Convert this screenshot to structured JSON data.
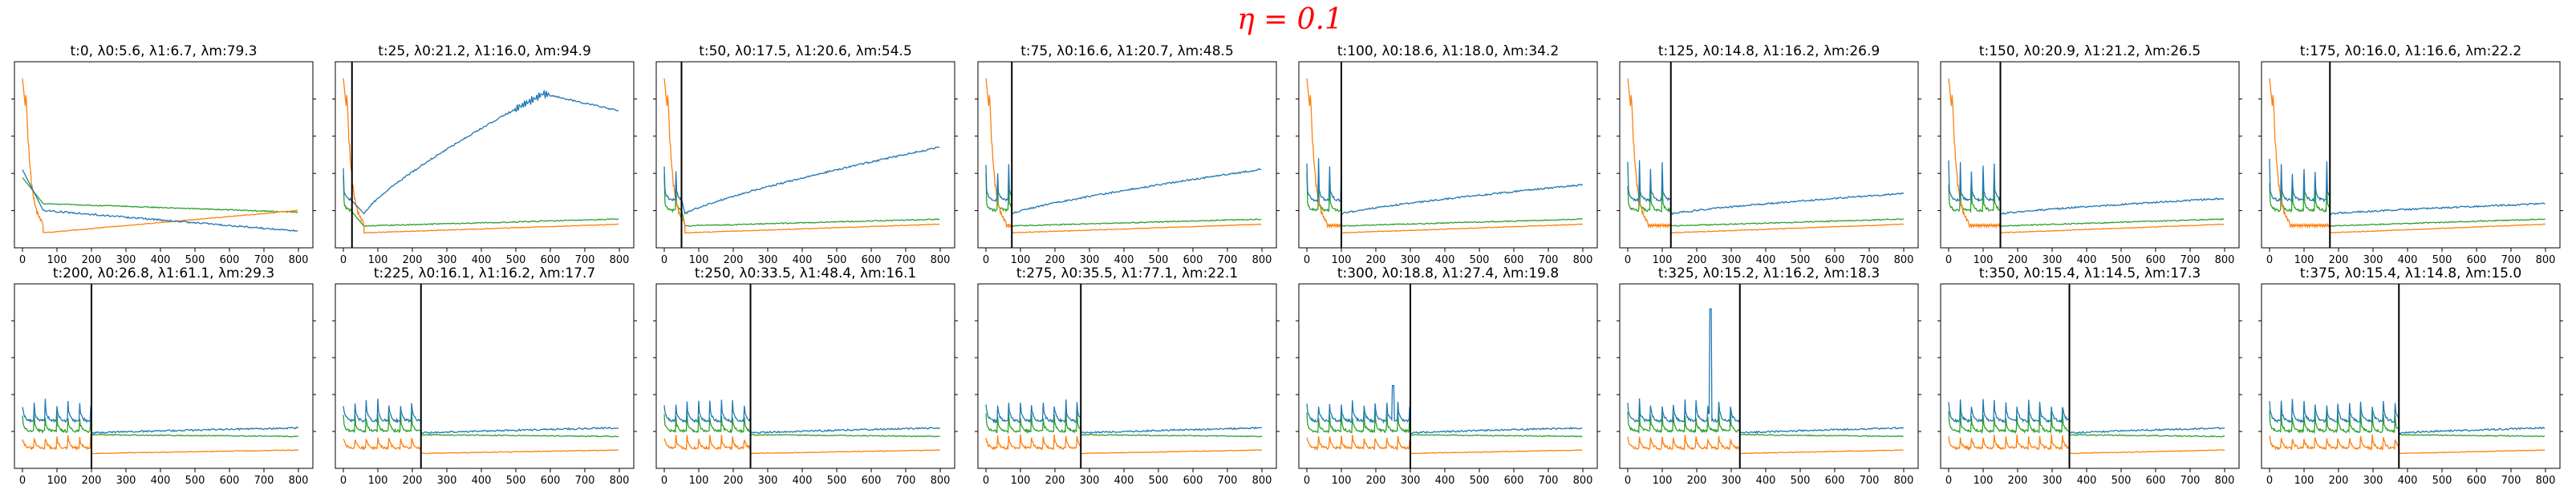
{
  "figure": {
    "title": "η = 0.1",
    "colors": {
      "series0": "#1f77b4",
      "series1": "#ff7f0e",
      "series2": "#2ca02c",
      "marker": "#000000",
      "title": "#ff0000"
    }
  },
  "chart_data": [
    {
      "type": "line",
      "title": "t:0, λ0:5.6, λ1:6.7, λm:79.3",
      "t": 0,
      "xlim": [
        0,
        800
      ],
      "xticks": [
        0,
        100,
        200,
        300,
        400,
        500,
        600,
        700,
        800
      ],
      "series": [
        {
          "name": "λ0"
        },
        {
          "name": "λ1"
        },
        {
          "name": "λm"
        }
      ]
    },
    {
      "type": "line",
      "title": "t:25, λ0:21.2, λ1:16.0, λm:94.9",
      "t": 25,
      "xlim": [
        0,
        800
      ],
      "xticks": [
        0,
        100,
        200,
        300,
        400,
        500,
        600,
        700,
        800
      ],
      "series": [
        {
          "name": "λ0"
        },
        {
          "name": "λ1"
        },
        {
          "name": "λm"
        }
      ]
    },
    {
      "type": "line",
      "title": "t:50, λ0:17.5, λ1:20.6, λm:54.5",
      "t": 50,
      "xlim": [
        0,
        800
      ],
      "xticks": [
        0,
        100,
        200,
        300,
        400,
        500,
        600,
        700,
        800
      ],
      "series": [
        {
          "name": "λ0"
        },
        {
          "name": "λ1"
        },
        {
          "name": "λm"
        }
      ]
    },
    {
      "type": "line",
      "title": "t:75, λ0:16.6, λ1:20.7, λm:48.5",
      "t": 75,
      "xlim": [
        0,
        800
      ],
      "xticks": [
        0,
        100,
        200,
        300,
        400,
        500,
        600,
        700,
        800
      ],
      "series": [
        {
          "name": "λ0"
        },
        {
          "name": "λ1"
        },
        {
          "name": "λm"
        }
      ]
    },
    {
      "type": "line",
      "title": "t:100, λ0:18.6, λ1:18.0, λm:34.2",
      "t": 100,
      "xlim": [
        0,
        800
      ],
      "xticks": [
        0,
        100,
        200,
        300,
        400,
        500,
        600,
        700,
        800
      ],
      "series": [
        {
          "name": "λ0"
        },
        {
          "name": "λ1"
        },
        {
          "name": "λm"
        }
      ]
    },
    {
      "type": "line",
      "title": "t:125, λ0:14.8, λ1:16.2, λm:26.9",
      "t": 125,
      "xlim": [
        0,
        800
      ],
      "xticks": [
        0,
        100,
        200,
        300,
        400,
        500,
        600,
        700,
        800
      ],
      "series": [
        {
          "name": "λ0"
        },
        {
          "name": "λ1"
        },
        {
          "name": "λm"
        }
      ]
    },
    {
      "type": "line",
      "title": "t:150, λ0:20.9, λ1:21.2, λm:26.5",
      "t": 150,
      "xlim": [
        0,
        800
      ],
      "xticks": [
        0,
        100,
        200,
        300,
        400,
        500,
        600,
        700,
        800
      ],
      "series": [
        {
          "name": "λ0"
        },
        {
          "name": "λ1"
        },
        {
          "name": "λm"
        }
      ]
    },
    {
      "type": "line",
      "title": "t:175, λ0:16.0, λ1:16.6, λm:22.2",
      "t": 175,
      "xlim": [
        0,
        800
      ],
      "xticks": [
        0,
        100,
        200,
        300,
        400,
        500,
        600,
        700,
        800
      ],
      "series": [
        {
          "name": "λ0"
        },
        {
          "name": "λ1"
        },
        {
          "name": "λm"
        }
      ]
    },
    {
      "type": "line",
      "title": "t:200, λ0:26.8, λ1:61.1, λm:29.3",
      "t": 200,
      "xlim": [
        0,
        800
      ],
      "xticks": [
        0,
        100,
        200,
        300,
        400,
        500,
        600,
        700,
        800
      ],
      "series": [
        {
          "name": "λ0"
        },
        {
          "name": "λ1"
        },
        {
          "name": "λm"
        }
      ]
    },
    {
      "type": "line",
      "title": "t:225, λ0:16.1, λ1:16.2, λm:17.7",
      "t": 225,
      "xlim": [
        0,
        800
      ],
      "xticks": [
        0,
        100,
        200,
        300,
        400,
        500,
        600,
        700,
        800
      ],
      "series": [
        {
          "name": "λ0"
        },
        {
          "name": "λ1"
        },
        {
          "name": "λm"
        }
      ]
    },
    {
      "type": "line",
      "title": "t:250, λ0:33.5, λ1:48.4, λm:16.1",
      "t": 250,
      "xlim": [
        0,
        800
      ],
      "xticks": [
        0,
        100,
        200,
        300,
        400,
        500,
        600,
        700,
        800
      ],
      "series": [
        {
          "name": "λ0"
        },
        {
          "name": "λ1"
        },
        {
          "name": "λm"
        }
      ]
    },
    {
      "type": "line",
      "title": "t:275, λ0:35.5, λ1:77.1, λm:22.1",
      "t": 275,
      "xlim": [
        0,
        800
      ],
      "xticks": [
        0,
        100,
        200,
        300,
        400,
        500,
        600,
        700,
        800
      ],
      "series": [
        {
          "name": "λ0"
        },
        {
          "name": "λ1"
        },
        {
          "name": "λm"
        }
      ]
    },
    {
      "type": "line",
      "title": "t:300, λ0:18.8, λ1:27.4, λm:19.8",
      "t": 300,
      "xlim": [
        0,
        800
      ],
      "xticks": [
        0,
        100,
        200,
        300,
        400,
        500,
        600,
        700,
        800
      ],
      "series": [
        {
          "name": "λ0"
        },
        {
          "name": "λ1"
        },
        {
          "name": "λm"
        }
      ]
    },
    {
      "type": "line",
      "title": "t:325, λ0:15.2, λ1:16.2, λm:18.3",
      "t": 325,
      "xlim": [
        0,
        800
      ],
      "xticks": [
        0,
        100,
        200,
        300,
        400,
        500,
        600,
        700,
        800
      ],
      "series": [
        {
          "name": "λ0"
        },
        {
          "name": "λ1"
        },
        {
          "name": "λm"
        }
      ]
    },
    {
      "type": "line",
      "title": "t:350, λ0:15.4, λ1:14.5, λm:17.3",
      "t": 350,
      "xlim": [
        0,
        800
      ],
      "xticks": [
        0,
        100,
        200,
        300,
        400,
        500,
        600,
        700,
        800
      ],
      "series": [
        {
          "name": "λ0"
        },
        {
          "name": "λ1"
        },
        {
          "name": "λm"
        }
      ]
    },
    {
      "type": "line",
      "title": "t:375, λ0:15.4, λ1:14.8, λm:15.0",
      "t": 375,
      "xlim": [
        0,
        800
      ],
      "xticks": [
        0,
        100,
        200,
        300,
        400,
        500,
        600,
        700,
        800
      ],
      "series": [
        {
          "name": "λ0"
        },
        {
          "name": "λ1"
        },
        {
          "name": "λm"
        }
      ]
    }
  ]
}
